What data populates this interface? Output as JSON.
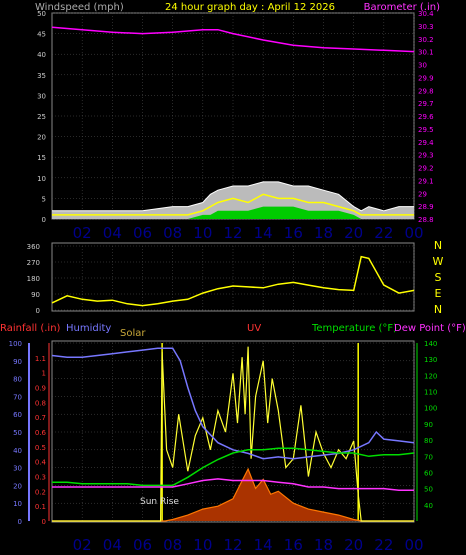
{
  "header": {
    "left_label": "Windspeed (mph)",
    "title": "24 hour graph day : April 12 2026",
    "right_label": "Barometer (.in)"
  },
  "colors": {
    "background": "#000000",
    "grid": "#555555",
    "wind": "#ffffff",
    "gust": "#ffff00",
    "barometer": "#ff00ff",
    "wind_avg": "#00cc00",
    "wind_dir": "#ffff00",
    "rainfall": "#ff3333",
    "humidity": "#7777ff",
    "solar": "#ffff33",
    "uv": "#ff7700",
    "temperature": "#00dd00",
    "dewpoint": "#ff33ff",
    "time_label": "#00008b",
    "title": "#ffff00"
  },
  "x_axis": {
    "hour_labels": [
      "02",
      "04",
      "06",
      "08",
      "10",
      "12",
      "14",
      "16",
      "18",
      "20",
      "22",
      "00"
    ],
    "hour_values": [
      2,
      4,
      6,
      8,
      10,
      12,
      14,
      16,
      18,
      20,
      22,
      24
    ]
  },
  "chart_data": [
    {
      "type": "line",
      "title": "24 hour graph day : April 12 2026",
      "ylabel": "Windspeed (mph)",
      "y2label": "Barometer (.in)",
      "x_range": [
        0,
        24
      ],
      "ylim": [
        0,
        50
      ],
      "y_ticks": [
        "0",
        "5",
        "10",
        "15",
        "20",
        "25",
        "30",
        "35",
        "40",
        "45",
        "50"
      ],
      "y2lim": [
        28.8,
        30.4
      ],
      "y2_ticks": [
        "28.8",
        "28.9",
        "29",
        "29.1",
        "29.2",
        "29.3",
        "29.4",
        "29.5",
        "29.6",
        "29.7",
        "29.8",
        "29.9",
        "30",
        "30.1",
        "30.2",
        "30.3",
        "30.4"
      ],
      "grid": true,
      "series": [
        {
          "axis": "y2",
          "x": [
            0,
            2,
            4,
            6,
            8,
            10,
            11,
            12,
            14,
            16,
            18,
            20,
            22,
            24
          ],
          "values": [
            30.29,
            30.27,
            30.25,
            30.24,
            30.25,
            30.27,
            30.27,
            30.24,
            30.19,
            30.15,
            30.13,
            30.12,
            30.11,
            30.1
          ]
        },
        {
          "axis": "y",
          "x": [
            0,
            2,
            4,
            6,
            8,
            9,
            10,
            10.5,
            11,
            12,
            13,
            14,
            15,
            16,
            17,
            18,
            19,
            20,
            20.5,
            21,
            22,
            23,
            24
          ],
          "values": [
            2,
            2,
            2,
            2,
            3,
            3,
            4,
            6,
            7,
            8,
            8,
            9,
            9,
            8,
            8,
            7,
            6,
            3,
            2,
            3,
            2,
            3,
            3
          ]
        },
        {
          "axis": "y",
          "x": [
            0,
            2,
            4,
            6,
            8,
            9,
            10,
            10.5,
            11,
            12,
            13,
            14,
            15,
            16,
            17,
            18,
            19,
            20,
            20.5,
            21,
            22,
            23,
            24
          ],
          "values": [
            1,
            1,
            1,
            1,
            1,
            1,
            2,
            3,
            4,
            5,
            4,
            6,
            5,
            5,
            4,
            4,
            3,
            2,
            1,
            1,
            1,
            1,
            1
          ]
        },
        {
          "axis": "y",
          "x": [
            0,
            2,
            4,
            6,
            8,
            9,
            10,
            10.5,
            11,
            12,
            13,
            14,
            15,
            16,
            17,
            18,
            19,
            20,
            20.5,
            21,
            22,
            23,
            24
          ],
          "values": [
            0,
            0,
            0,
            0,
            0,
            0,
            1,
            1,
            2,
            2,
            2,
            3,
            3,
            3,
            2,
            2,
            2,
            1,
            0,
            0,
            0,
            0,
            0
          ]
        }
      ]
    },
    {
      "type": "line",
      "ylim": [
        0,
        360
      ],
      "y_ticks": [
        "0",
        "90",
        "180",
        "270",
        "360"
      ],
      "compass": [
        "N",
        "W",
        "S",
        "E",
        "N"
      ],
      "x_range": [
        0,
        24
      ],
      "grid": true,
      "series": [
        {
          "x": [
            0,
            1,
            2,
            3,
            4,
            5,
            6,
            7,
            8,
            9,
            10,
            11,
            12,
            13,
            14,
            15,
            16,
            17,
            18,
            19,
            20,
            20.5,
            21,
            22,
            23,
            24
          ],
          "values": [
            40,
            80,
            60,
            50,
            55,
            35,
            25,
            35,
            50,
            60,
            95,
            120,
            135,
            130,
            125,
            145,
            155,
            140,
            125,
            115,
            110,
            300,
            290,
            140,
            95,
            110
          ]
        }
      ]
    },
    {
      "type": "line",
      "x_range": [
        0,
        24
      ],
      "grid": true,
      "axes": {
        "rainfall": {
          "label": "Rainfall (.in)",
          "range": [
            0,
            1.2
          ],
          "ticks": [
            "0",
            "0.1",
            "0.2",
            "0.3",
            "0.4",
            "0.5",
            "0.6",
            "0.7",
            "0.8",
            "0.9",
            "1",
            "1.1"
          ]
        },
        "humidity": {
          "label": "Humidity",
          "range": [
            0,
            100
          ],
          "ticks": [
            "0",
            "10",
            "20",
            "30",
            "40",
            "50",
            "60",
            "70",
            "80",
            "90",
            "100"
          ]
        },
        "temperature": {
          "label": "Temperature (°F) Dew Point (°F)",
          "range": [
            30,
            140
          ],
          "ticks": [
            "40",
            "50",
            "60",
            "70",
            "80",
            "90",
            "100",
            "110",
            "120",
            "130",
            "140"
          ]
        }
      },
      "legend": [
        "Rainfall (.in)",
        "Humidity",
        "Solar",
        "UV",
        "Temperature (°F)",
        "Dew Point (°F)"
      ],
      "annotation": "Sun Rise",
      "markers_x": [
        7.3,
        20.3
      ],
      "series": [
        {
          "axis": "humidity",
          "x": [
            0,
            1,
            2,
            3,
            4,
            5,
            6,
            7,
            8,
            8.5,
            9,
            9.5,
            10,
            11,
            12,
            13,
            14,
            15,
            16,
            17,
            18,
            19,
            20,
            21,
            21.5,
            22,
            23,
            24
          ],
          "values": [
            93,
            92,
            92,
            93,
            94,
            95,
            96,
            97,
            97,
            90,
            75,
            62,
            53,
            44,
            40,
            38,
            35,
            36,
            35,
            36,
            37,
            38,
            40,
            44,
            50,
            46,
            45,
            44
          ]
        },
        {
          "axis": "temperature",
          "x": [
            0,
            1,
            2,
            3,
            4,
            5,
            6,
            7,
            8,
            9,
            10,
            11,
            12,
            13,
            14,
            15,
            16,
            17,
            18,
            19,
            20,
            21,
            22,
            23,
            24
          ],
          "values": [
            54,
            54,
            53,
            53,
            53,
            53,
            52,
            52,
            52,
            57,
            63,
            68,
            72,
            74,
            74,
            75,
            75,
            74,
            73,
            72,
            72,
            70,
            71,
            71,
            72
          ]
        },
        {
          "axis": "temperature",
          "x": [
            0,
            1,
            2,
            3,
            4,
            5,
            6,
            7,
            8,
            9,
            10,
            11,
            12,
            13,
            14,
            15,
            16,
            17,
            18,
            19,
            20,
            21,
            22,
            23,
            24
          ],
          "values": [
            51,
            51,
            51,
            51,
            51,
            51,
            51,
            51,
            51,
            53,
            55,
            56,
            55,
            55,
            55,
            54,
            53,
            51,
            51,
            50,
            50,
            50,
            50,
            49,
            49
          ]
        },
        {
          "axis": "humidity",
          "x": [
            0,
            7.2,
            7.3,
            7.6,
            8,
            8.4,
            9,
            9.5,
            10,
            10.5,
            11,
            11.5,
            12,
            12.3,
            12.6,
            12.8,
            13,
            13.2,
            13.5,
            14,
            14.3,
            14.6,
            15,
            15.5,
            16,
            16.5,
            17,
            17.5,
            18,
            18.5,
            19,
            19.5,
            20,
            20.3,
            20.5,
            24
          ],
          "values": [
            0,
            0,
            95,
            40,
            30,
            60,
            28,
            48,
            58,
            40,
            62,
            50,
            83,
            55,
            92,
            60,
            98,
            35,
            70,
            90,
            55,
            80,
            62,
            30,
            35,
            65,
            25,
            50,
            38,
            30,
            40,
            35,
            45,
            15,
            0,
            0
          ]
        },
        {
          "axis": "rainfall",
          "x": [
            0,
            7.5,
            8,
            9,
            10,
            11,
            12,
            12.5,
            13,
            13.5,
            14,
            14.5,
            15,
            16,
            17,
            18,
            19,
            20,
            20.5,
            24
          ],
          "values": [
            0,
            0,
            0.01,
            0.04,
            0.08,
            0.1,
            0.15,
            0.25,
            0.35,
            0.22,
            0.28,
            0.18,
            0.2,
            0.12,
            0.08,
            0.06,
            0.04,
            0.01,
            0,
            0
          ]
        }
      ]
    }
  ]
}
